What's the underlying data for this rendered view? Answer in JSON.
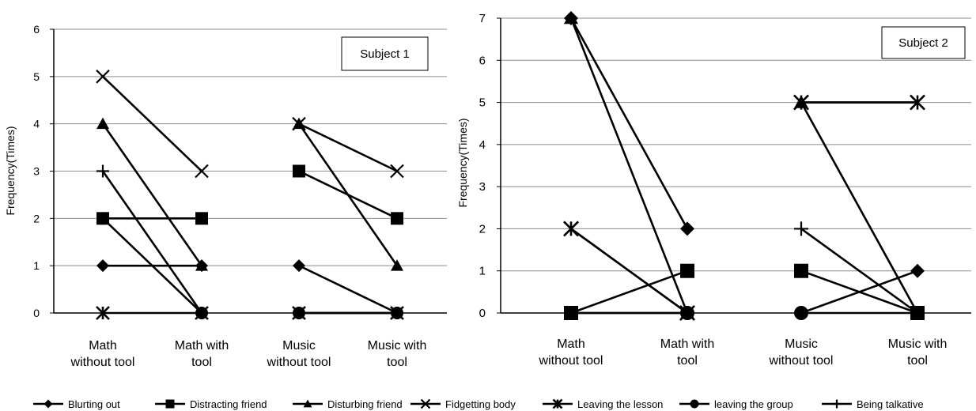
{
  "legend": {
    "items": [
      {
        "name": "Blurting out",
        "marker": "diamond-icon"
      },
      {
        "name": "Distracting friend",
        "marker": "square-icon"
      },
      {
        "name": "Disturbing friend",
        "marker": "triangle-icon"
      },
      {
        "name": "Fidgetting body",
        "marker": "x-icon"
      },
      {
        "name": "Leaving the lesson",
        "marker": "star-icon"
      },
      {
        "name": "leaving the group",
        "marker": "circle-icon"
      },
      {
        "name": "Being talkative",
        "marker": "plus-icon"
      }
    ]
  },
  "chart_data": [
    {
      "type": "line",
      "title": "Subject 1",
      "ylabel": "Frequency(Times)",
      "xlabel": "",
      "ylim": [
        0,
        6
      ],
      "yticks": [
        "0",
        "1",
        "2",
        "3",
        "4",
        "5",
        "6"
      ],
      "grid": true,
      "categories": [
        [
          "Math",
          "without tool"
        ],
        [
          "Math with",
          "tool"
        ],
        [
          "Music",
          "without tool"
        ],
        [
          "Music with",
          "tool"
        ]
      ],
      "segments": [
        [
          0,
          1
        ],
        [
          2,
          3
        ]
      ],
      "series": [
        {
          "name": "Blurting out",
          "values": [
            1,
            1,
            1,
            0
          ]
        },
        {
          "name": "Distracting friend",
          "values": [
            2,
            2,
            3,
            2
          ]
        },
        {
          "name": "Disturbing friend",
          "values": [
            4,
            1,
            4,
            1
          ]
        },
        {
          "name": "Fidgetting body",
          "values": [
            5,
            3,
            4,
            3
          ]
        },
        {
          "name": "Leaving the lesson",
          "values": [
            0,
            0,
            0,
            0
          ]
        },
        {
          "name": "leaving the group",
          "values": [
            2,
            0,
            0,
            0
          ]
        },
        {
          "name": "Being talkative",
          "values": [
            3,
            0,
            0,
            0
          ]
        }
      ]
    },
    {
      "type": "line",
      "title": "Subject 2",
      "ylabel": "Frequency(Times)",
      "xlabel": "",
      "ylim": [
        0,
        7
      ],
      "yticks": [
        "0",
        "1",
        "2",
        "3",
        "4",
        "5",
        "6",
        "7"
      ],
      "grid": true,
      "categories": [
        [
          "Math",
          "without tool"
        ],
        [
          "Math with",
          "tool"
        ],
        [
          "Music",
          "without tool"
        ],
        [
          "Music with",
          "tool"
        ]
      ],
      "segments": [
        [
          0,
          1
        ],
        [
          2,
          3
        ]
      ],
      "series": [
        {
          "name": "Blurting out",
          "values": [
            7,
            2,
            0,
            1
          ]
        },
        {
          "name": "Distracting friend",
          "values": [
            0,
            1,
            1,
            0
          ]
        },
        {
          "name": "Disturbing friend",
          "values": [
            7,
            0,
            5,
            0
          ]
        },
        {
          "name": "Fidgetting body",
          "values": [
            2,
            0,
            5,
            5
          ]
        },
        {
          "name": "Leaving the lesson",
          "values": [
            2,
            0,
            5,
            5
          ]
        },
        {
          "name": "leaving the group",
          "values": [
            0,
            0,
            0,
            0
          ]
        },
        {
          "name": "Being talkative",
          "values": [
            0,
            0,
            2,
            0
          ]
        }
      ]
    }
  ]
}
